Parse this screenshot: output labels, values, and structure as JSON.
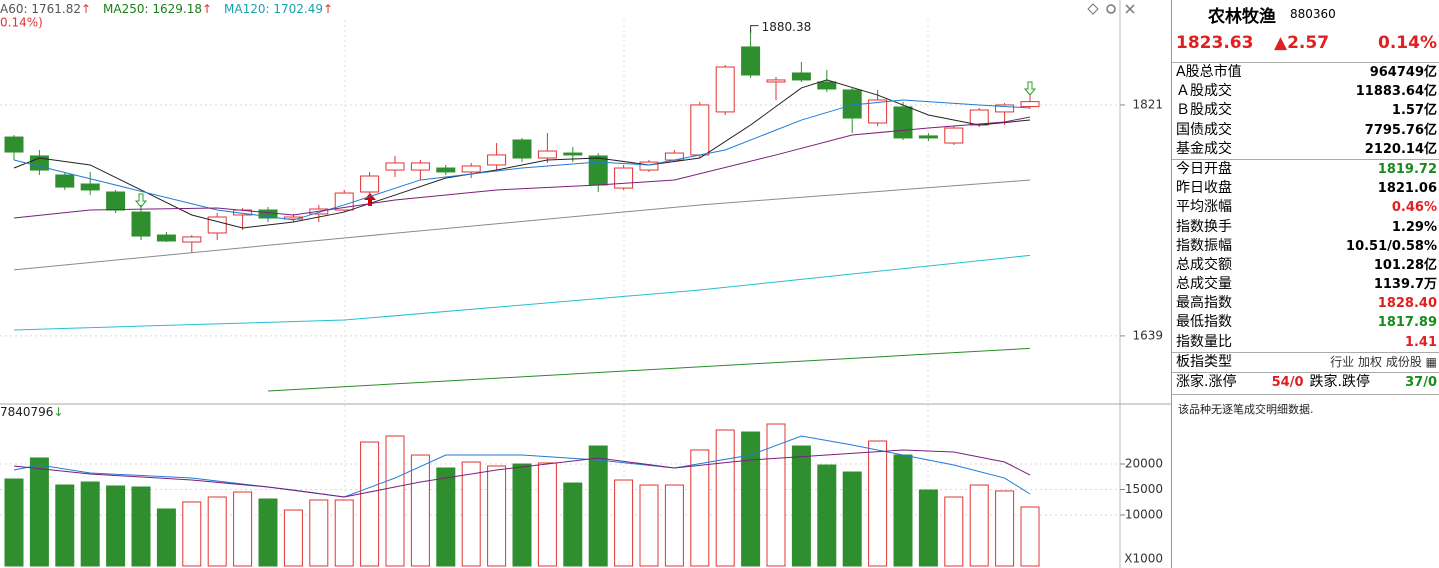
{
  "chart_data": [
    {
      "type": "candlestick",
      "legend": [
        {
          "text": "A60: 1761.82",
          "arrow": "↑",
          "color": "#555555"
        },
        {
          "text": "MA250: 1629.18",
          "arrow": "↑",
          "color": "#1a7f1a"
        },
        {
          "text": "MA120: 1702.49",
          "arrow": "↑",
          "color": "#17a2b0"
        }
      ],
      "subheader": "0.14%)",
      "open": [
        1795.7,
        1780.8,
        1765.8,
        1758.7,
        1752.4,
        1736.6,
        1718.5,
        1713.0,
        1720.1,
        1734.3,
        1738.2,
        1731.1,
        1735.1,
        1738.2,
        1752.4,
        1769.7,
        1769.7,
        1771.3,
        1768.2,
        1773.7,
        1793.4,
        1779.2,
        1783.1,
        1780.8,
        1755.5,
        1769.7,
        1777.6,
        1781.6,
        1815.5,
        1866.7,
        1839.1,
        1846.2,
        1839.1,
        1832.8,
        1806.8,
        1819.4,
        1796.6,
        1791.0,
        1805.2,
        1815.5,
        1819.72
      ],
      "high": [
        1797.3,
        1785.5,
        1768.2,
        1768.2,
        1754.0,
        1742.2,
        1720.9,
        1718.5,
        1735.9,
        1739.8,
        1740.6,
        1735.1,
        1742.2,
        1754.0,
        1768.2,
        1780.8,
        1777.6,
        1773.7,
        1775.3,
        1791.0,
        1795.0,
        1798.9,
        1787.9,
        1783.1,
        1773.7,
        1777.6,
        1785.5,
        1823.3,
        1852.5,
        1880.38,
        1843.0,
        1854.9,
        1848.5,
        1834.4,
        1832.8,
        1823.3,
        1798.9,
        1804.4,
        1818.6,
        1822.5,
        1828.4
      ],
      "low": [
        1777.6,
        1765.8,
        1754.0,
        1750.0,
        1735.9,
        1714.6,
        1713.0,
        1704.3,
        1714.6,
        1722.5,
        1728.8,
        1728.8,
        1728.8,
        1736.6,
        1750.0,
        1764.2,
        1761.9,
        1765.8,
        1763.4,
        1769.7,
        1776.0,
        1775.3,
        1776.0,
        1752.4,
        1754.0,
        1768.2,
        1776.0,
        1779.2,
        1813.1,
        1842.2,
        1824.9,
        1839.1,
        1831.2,
        1798.9,
        1804.4,
        1793.4,
        1792.6,
        1789.5,
        1803.6,
        1805.2,
        1817.89
      ],
      "close": [
        1783.9,
        1769.7,
        1756.3,
        1754.0,
        1738.2,
        1717.7,
        1713.8,
        1717.0,
        1732.7,
        1738.2,
        1731.9,
        1732.7,
        1739.0,
        1751.6,
        1765.0,
        1775.3,
        1775.3,
        1768.2,
        1772.9,
        1781.6,
        1779.2,
        1784.7,
        1781.6,
        1757.9,
        1771.3,
        1776.0,
        1783.1,
        1821.0,
        1850.9,
        1844.6,
        1840.7,
        1840.7,
        1833.6,
        1810.7,
        1824.9,
        1795.0,
        1795.0,
        1802.8,
        1817.0,
        1821.0,
        1823.63
      ],
      "up_color": "#e03434",
      "down_color": "#2f8f2f",
      "series": [
        {
          "color": "#222222",
          "x": [
            0,
            1,
            3,
            5,
            7,
            9,
            11,
            13,
            15,
            17,
            19,
            21,
            23,
            25,
            27,
            29,
            31,
            32,
            34,
            36,
            38,
            40
          ],
          "values": [
            1771.3,
            1779.2,
            1773.7,
            1754.0,
            1734.3,
            1724.0,
            1728.8,
            1736.6,
            1750.0,
            1763.4,
            1769.7,
            1777.6,
            1779.2,
            1773.7,
            1779.2,
            1805.2,
            1834.4,
            1840.7,
            1828.8,
            1813.1,
            1805.2,
            1809.1
          ]
        },
        {
          "color": "#1f7bd6",
          "x": [
            0,
            4,
            8,
            11,
            13,
            16,
            20,
            23,
            25,
            28,
            31,
            33,
            35,
            38,
            40
          ],
          "values": [
            1777.6,
            1757.9,
            1738.2,
            1730.4,
            1742.2,
            1761.9,
            1771.3,
            1776.0,
            1773.7,
            1785.5,
            1809.1,
            1821.0,
            1824.9,
            1821.0,
            1818.6
          ]
        },
        {
          "color": "#7b1f7b",
          "x": [
            0,
            3,
            8,
            11,
            15,
            19,
            23,
            26,
            30,
            33,
            36,
            39,
            40
          ],
          "values": [
            1731.9,
            1738.2,
            1739.8,
            1734.3,
            1746.1,
            1754.0,
            1757.9,
            1761.9,
            1781.6,
            1797.3,
            1802.8,
            1807.6,
            1811.5
          ]
        },
        {
          "color": "#8a8a8a",
          "x": [
            0,
            13,
            27,
            40
          ],
          "values": [
            1691.0,
            1716.2,
            1742.2,
            1761.82
          ]
        },
        {
          "color": "#22c0d0",
          "x": [
            0,
            13,
            27,
            40
          ],
          "values": [
            1643.7,
            1651.5,
            1675.2,
            1702.49
          ]
        },
        {
          "color": "#2a8a2a",
          "x": [
            10,
            40
          ],
          "values": [
            1595.6,
            1629.18
          ]
        }
      ],
      "ylim": [
        1588.5,
        1903.7
      ],
      "yticks": [
        1821,
        1639
      ],
      "grid": true
    },
    {
      "type": "bar",
      "header": {
        "text": "7840796",
        "arrow": "↓"
      },
      "unit": "X1000",
      "values": [
        17060,
        21180,
        15880,
        16470,
        15690,
        15490,
        11180,
        12550,
        13530,
        14510,
        13140,
        10980,
        12940,
        12940,
        24310,
        25490,
        21760,
        19220,
        20390,
        19610,
        20000,
        20200,
        16270,
        23530,
        16860,
        15880,
        15880,
        22750,
        26670,
        26270,
        27840,
        23530,
        19800,
        18430,
        24510,
        21760,
        14900,
        13530,
        15880,
        14710,
        11570
      ],
      "series": [
        {
          "color": "#1f7bd6",
          "x": [
            0,
            1,
            3,
            7,
            11,
            13,
            15,
            17,
            20,
            23,
            26,
            29,
            31,
            33,
            35,
            37,
            39,
            40
          ],
          "values": [
            18820,
            19800,
            18240,
            17250,
            14900,
            13530,
            17250,
            21760,
            21760,
            20780,
            19220,
            21760,
            25490,
            23730,
            21760,
            19800,
            17250,
            14120
          ]
        },
        {
          "color": "#7b1f7b",
          "x": [
            0,
            3,
            7,
            10,
            13,
            16,
            19,
            23,
            26,
            29,
            32,
            35,
            37,
            39,
            40
          ],
          "values": [
            19610,
            18040,
            16860,
            15490,
            13530,
            16470,
            18820,
            21180,
            19220,
            20780,
            21760,
            22750,
            22350,
            20390,
            17840
          ]
        }
      ],
      "ylim": [
        0,
        31570
      ],
      "yticks": [
        20000,
        15000,
        10000
      ],
      "grid": true
    }
  ],
  "panel": {
    "title": "农林牧渔",
    "code": "880360",
    "price": "1823.63",
    "change": "▲2.57",
    "pct": "0.14%",
    "group1": [
      [
        "A股总市值",
        "964749亿"
      ],
      [
        "Ａ股成交",
        "11883.64亿"
      ],
      [
        "Ｂ股成交",
        "1.57亿"
      ],
      [
        "国债成交",
        "7795.76亿"
      ],
      [
        "基金成交",
        "2120.14亿"
      ]
    ],
    "group2": [
      [
        "今日开盘",
        "1819.72",
        "#1a8a1a"
      ],
      [
        "昨日收盘",
        "1821.06",
        "#000000"
      ],
      [
        "平均涨幅",
        "0.46%",
        "#e02020"
      ],
      [
        "指数换手",
        "1.29%",
        "#000000"
      ],
      [
        "指数振幅",
        "10.51/0.58%",
        "#000000"
      ],
      [
        "总成交额",
        "101.28亿",
        "#000000"
      ],
      [
        "总成交量",
        "1139.7万",
        "#000000"
      ],
      [
        "最高指数",
        "1828.40",
        "#e02020"
      ],
      [
        "最低指数",
        "1817.89",
        "#1a8a1a"
      ],
      [
        "指数量比",
        "1.41",
        "#e02020"
      ]
    ],
    "type_row": [
      "板指类型",
      "行业",
      "加权",
      "成份股"
    ],
    "footer": [
      "涨家.涨停",
      "54/0",
      "跌家.跌停",
      "37/0"
    ],
    "note": "该品种无逐笔成交明细数据."
  }
}
